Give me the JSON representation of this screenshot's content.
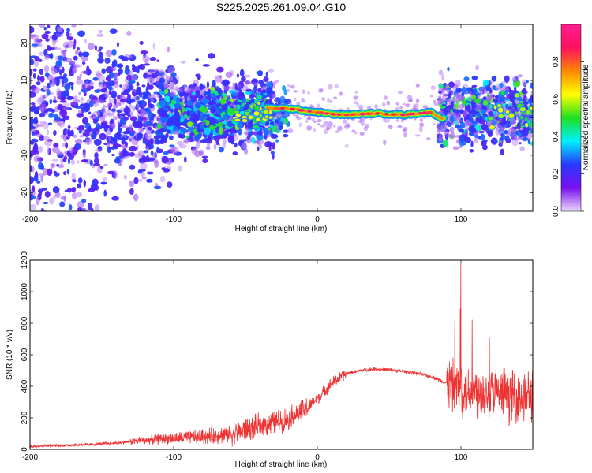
{
  "title": "S225.2025.261.09.04.G10",
  "chart_data": [
    {
      "type": "heatmap",
      "xlabel": "Height of straight line (km)",
      "ylabel": "Frequency (Hz)",
      "xlim": [
        -200,
        150
      ],
      "ylim": [
        -25,
        25
      ],
      "xticks": [
        -200,
        -100,
        0,
        100
      ],
      "yticks": [
        -20,
        -10,
        0,
        10,
        20
      ],
      "colorbar": {
        "label": "Normalized spectral amplitude",
        "range": [
          0,
          1
        ],
        "ticks": [
          0.0,
          0.2,
          0.4,
          0.6,
          0.8
        ],
        "colors": [
          "#ead8fc",
          "#7a10f0",
          "#2838ff",
          "#00f0ff",
          "#20e020",
          "#ffff00",
          "#ff8800",
          "#ff1060",
          "#ff2090"
        ]
      },
      "ridge_frequency": {
        "x": [
          -20,
          -10,
          0,
          10,
          20,
          30,
          40,
          50,
          60,
          70,
          80,
          85
        ],
        "y": [
          2.5,
          2.0,
          1.5,
          1.0,
          0.8,
          1.0,
          1.2,
          1.0,
          0.8,
          1.2,
          1.5,
          0
        ]
      }
    },
    {
      "type": "line",
      "xlabel": "Height of straight line (km)",
      "ylabel": "SNR (10 * v/v)",
      "xlim": [
        -200,
        150
      ],
      "ylim": [
        0,
        1200
      ],
      "xticks": [
        -200,
        -100,
        0,
        100
      ],
      "yticks": [
        0,
        200,
        400,
        600,
        800,
        1000,
        1200
      ],
      "color": "#ee3333",
      "series": [
        {
          "x": [
            -200,
            -180,
            -160,
            -140,
            -120,
            -100,
            -80,
            -60,
            -40,
            -30,
            -20,
            -10,
            0,
            10,
            20,
            30,
            40,
            50,
            60,
            70,
            80,
            90,
            95,
            100,
            110,
            120,
            130,
            140,
            150
          ],
          "y": [
            20,
            25,
            30,
            40,
            60,
            70,
            80,
            100,
            150,
            170,
            200,
            240,
            320,
            420,
            480,
            500,
            510,
            505,
            495,
            480,
            460,
            420,
            400,
            380,
            370,
            360,
            350,
            340,
            350
          ]
        }
      ]
    }
  ]
}
